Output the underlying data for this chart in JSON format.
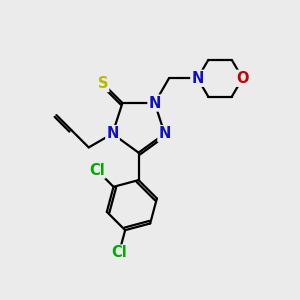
{
  "background_color": "#ebebeb",
  "atom_colors": {
    "C": "#000000",
    "N": "#1010cc",
    "S": "#b8b800",
    "O": "#cc0000",
    "Cl": "#00aa00",
    "H": "#000000"
  },
  "bond_color": "#000000",
  "bond_width": 1.6,
  "font_size_atom": 10.5
}
